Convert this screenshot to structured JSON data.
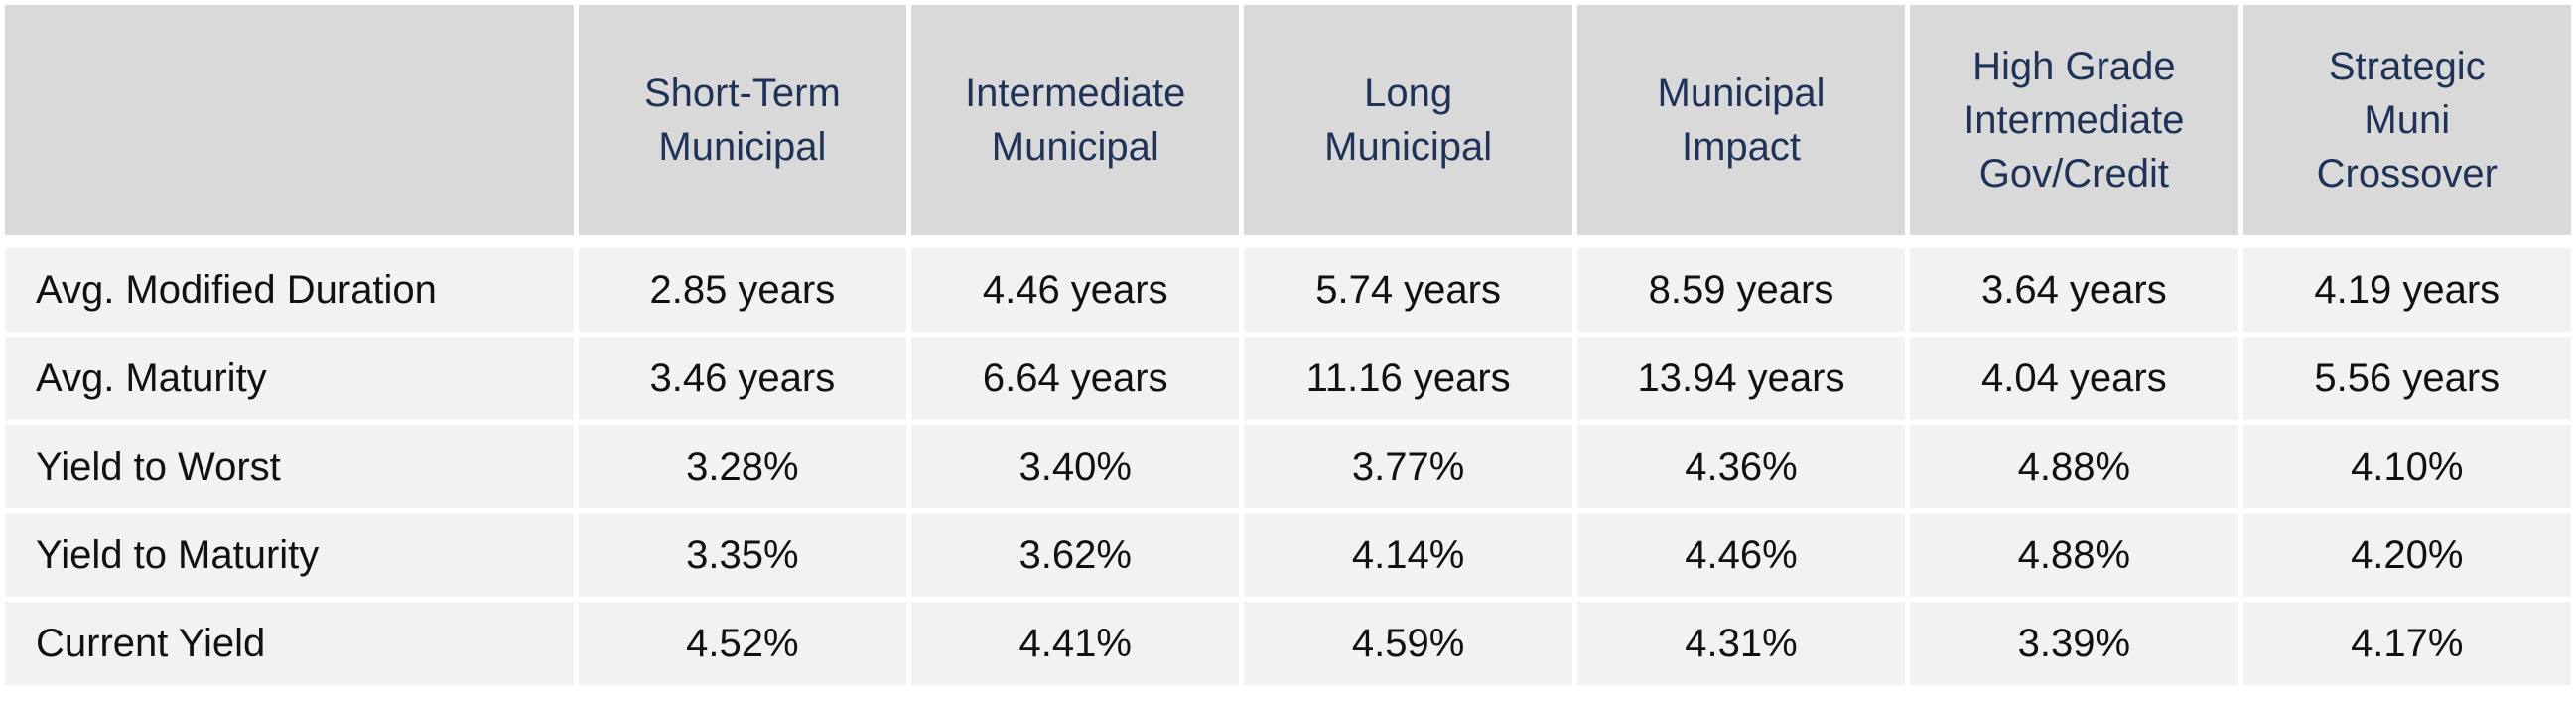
{
  "columns": [
    {
      "label_lines": [
        "Short-Term",
        "Municipal"
      ]
    },
    {
      "label_lines": [
        "Intermediate",
        "Municipal"
      ]
    },
    {
      "label_lines": [
        "Long",
        "Municipal"
      ]
    },
    {
      "label_lines": [
        "Municipal",
        "Impact"
      ]
    },
    {
      "label_lines": [
        "High Grade",
        "Intermediate",
        "Gov/Credit"
      ]
    },
    {
      "label_lines": [
        "Strategic",
        "Muni",
        "Crossover"
      ]
    }
  ],
  "rows": [
    {
      "label": "Avg. Modified Duration",
      "values": [
        "2.85 years",
        "4.46 years",
        "5.74 years",
        "8.59 years",
        "3.64 years",
        "4.19 years"
      ]
    },
    {
      "label": "Avg. Maturity",
      "values": [
        "3.46 years",
        "6.64 years",
        "11.16 years",
        "13.94 years",
        "4.04 years",
        "5.56 years"
      ]
    },
    {
      "label": "Yield to Worst",
      "values": [
        "3.28%",
        "3.40%",
        "3.77%",
        "4.36%",
        "4.88%",
        "4.10%"
      ]
    },
    {
      "label": "Yield to Maturity",
      "values": [
        "3.35%",
        "3.62%",
        "4.14%",
        "4.46%",
        "4.88%",
        "4.20%"
      ]
    },
    {
      "label": "Current Yield",
      "values": [
        "4.52%",
        "4.41%",
        "4.59%",
        "4.31%",
        "3.39%",
        "4.17%"
      ]
    }
  ],
  "colors": {
    "header_bg": "#d9d9d9",
    "header_text": "#1f3358",
    "body_bg": "#f2f2f2",
    "body_text": "#111111",
    "grid": "#ffffff"
  }
}
